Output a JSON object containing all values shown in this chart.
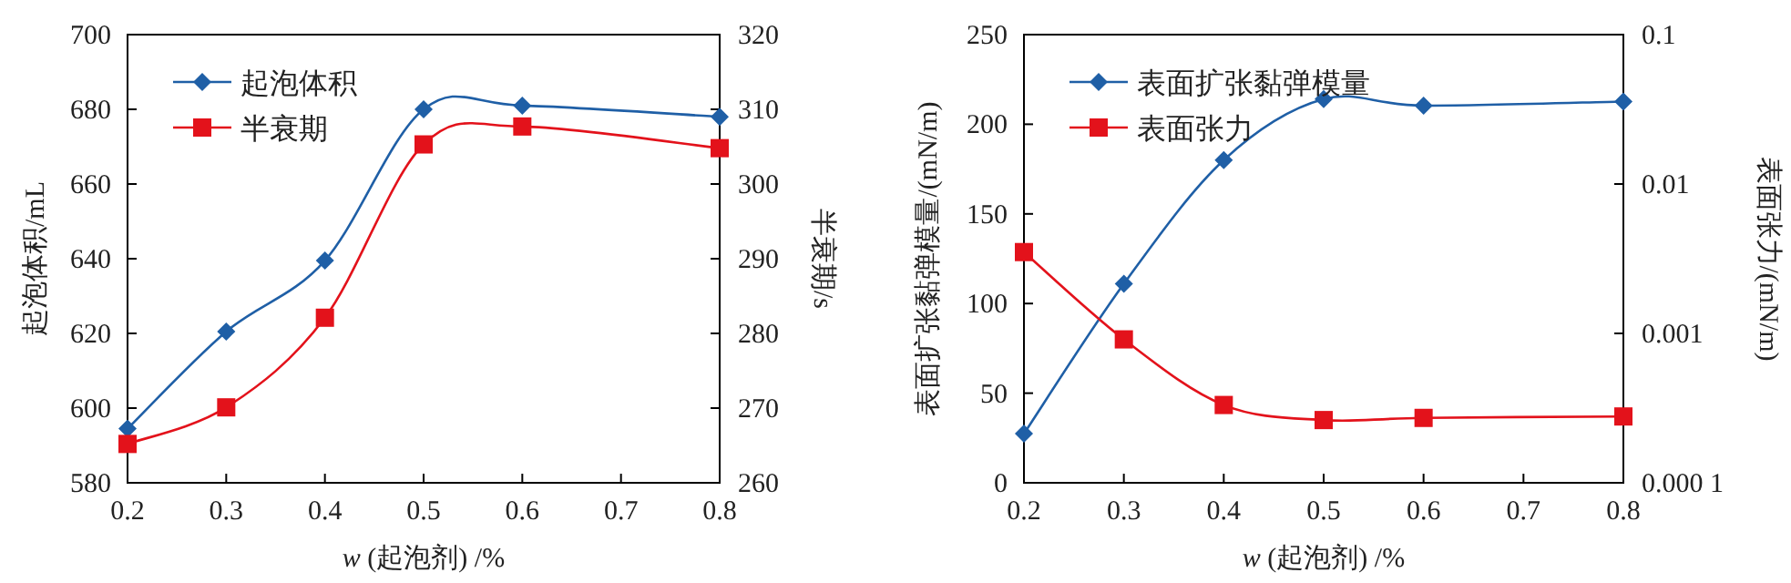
{
  "chart_data": [
    {
      "type": "line",
      "xlabel": "*w* (起泡剂) /%",
      "ylabel": "起泡体积/mL",
      "y2label": "半衰期/s",
      "x": [
        0.2,
        0.3,
        0.4,
        0.5,
        0.6,
        0.8
      ],
      "xlim": [
        0.2,
        0.8
      ],
      "xticks": [
        0.2,
        0.3,
        0.4,
        0.5,
        0.6,
        0.7,
        0.8
      ],
      "ylim": [
        580,
        700
      ],
      "yticks": [
        580,
        600,
        620,
        640,
        660,
        680,
        700
      ],
      "y2lim": [
        260,
        320
      ],
      "y2ticks": [
        260,
        270,
        280,
        290,
        300,
        310,
        320
      ],
      "legend": "top left",
      "grid": false,
      "series": [
        {
          "name": "起泡体积",
          "color": "#1f5fa6",
          "marker": "diamond",
          "values": [
            594.5,
            620.5,
            639.5,
            680,
            681,
            678
          ]
        },
        {
          "name": "半衰期",
          "color": "#e3121b",
          "marker": "square",
          "axis": "y2",
          "values": [
            265.2,
            270.1,
            282.1,
            305.3,
            307.7,
            304.8
          ]
        }
      ]
    },
    {
      "type": "line",
      "xlabel": "*w* (起泡剂) /%",
      "ylabel": "表面扩张黏弹模量/(mN/m)",
      "y2label": "表面张力/(mN/m)",
      "x": [
        0.2,
        0.3,
        0.4,
        0.5,
        0.6,
        0.8
      ],
      "xlim": [
        0.2,
        0.8
      ],
      "xticks": [
        0.2,
        0.3,
        0.4,
        0.5,
        0.6,
        0.7,
        0.8
      ],
      "ylim": [
        0,
        250
      ],
      "yticks": [
        0,
        50,
        100,
        150,
        200,
        250
      ],
      "y2lim": [
        0.0001,
        0.1
      ],
      "y2ticks": [
        {
          "value": 0.0001,
          "label": "0.000 1"
        },
        0.001,
        0.01,
        0.1
      ],
      "log": "y2",
      "legend": "top left",
      "grid": false,
      "series": [
        {
          "name": "表面扩张黏弹模量",
          "color": "#1f5fa6",
          "marker": "diamond",
          "values": [
            27.4,
            111,
            180,
            214,
            210.4,
            212.7
          ]
        },
        {
          "name": "表面张力",
          "color": "#e3121b",
          "marker": "square",
          "values": [
            128.7,
            80,
            43.4,
            35,
            36.2,
            37
          ]
        }
      ]
    }
  ]
}
